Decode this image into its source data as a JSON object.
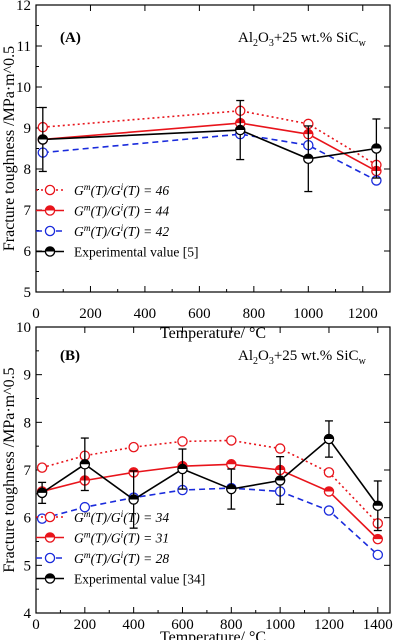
{
  "chart_data": [
    {
      "type": "line",
      "panel_label": "(A)",
      "annotation_main": "Al",
      "annotation_sub1": "2",
      "annotation_mid": "O",
      "annotation_sub2": "3",
      "annotation_rest": "+25 wt.% SiC",
      "annotation_sub3": "w",
      "xlabel": "Temperature/ °C",
      "ylabel": "Fracture toughness /MPa·m^0.5",
      "xlim": [
        0,
        1300
      ],
      "ylim": [
        5,
        12
      ],
      "xticks": [
        0,
        200,
        400,
        600,
        800,
        1000,
        1200
      ],
      "yticks": [
        5,
        6,
        7,
        8,
        9,
        10,
        11,
        12
      ],
      "series": [
        {
          "name_prefix": "G",
          "name_sup1": "m",
          "name_mid": "(T)/G",
          "name_sup2": "i",
          "name_suffix": "(T) = 46",
          "style": "dotted",
          "color": "#e8141b",
          "marker": "open-circle",
          "x": [
            25,
            750,
            1000,
            1250
          ],
          "y": [
            9.02,
            9.42,
            9.1,
            8.1
          ]
        },
        {
          "name_prefix": "G",
          "name_sup1": "m",
          "name_mid": "(T)/G",
          "name_sup2": "i",
          "name_suffix": "(T) = 44",
          "style": "solid",
          "color": "#e8141b",
          "marker": "half-filled-circle",
          "x": [
            25,
            750,
            1000,
            1250
          ],
          "y": [
            8.72,
            9.12,
            8.85,
            7.95
          ]
        },
        {
          "name_prefix": "G",
          "name_sup1": "m",
          "name_mid": "(T)/G",
          "name_sup2": "i",
          "name_suffix": "(T) = 42",
          "style": "dashed",
          "color": "#1a2bdc",
          "marker": "open-circle",
          "x": [
            25,
            750,
            1000,
            1250
          ],
          "y": [
            8.4,
            8.85,
            8.58,
            7.72
          ]
        },
        {
          "name_prefix": "Experimental value [5]",
          "style": "solid",
          "color": "#000000",
          "marker": "half-filled-circle",
          "x": [
            25,
            750,
            1000,
            1250
          ],
          "y": [
            8.72,
            8.95,
            8.25,
            8.5
          ],
          "err": [
            0.78,
            0.72,
            0.8,
            0.72
          ]
        }
      ]
    },
    {
      "type": "line",
      "panel_label": "(B)",
      "annotation_main": "Al",
      "annotation_sub1": "2",
      "annotation_mid": "O",
      "annotation_sub2": "3",
      "annotation_rest": "+25 wt.% SiC",
      "annotation_sub3": "w",
      "xlabel": "Temperature/ °C",
      "ylabel": "Fracture toughness /MPa·m^0.5",
      "xlim": [
        0,
        1450
      ],
      "ylim": [
        4,
        10
      ],
      "xticks": [
        0,
        200,
        400,
        600,
        800,
        1000,
        1200,
        1400
      ],
      "yticks": [
        4,
        5,
        6,
        7,
        8,
        9,
        10
      ],
      "series": [
        {
          "name_prefix": "G",
          "name_sup1": "m",
          "name_mid": "(T)/G",
          "name_sup2": "i",
          "name_suffix": "(T) = 34",
          "style": "dotted",
          "color": "#e8141b",
          "marker": "open-circle",
          "x": [
            25,
            200,
            400,
            600,
            800,
            1000,
            1200,
            1400
          ],
          "y": [
            7.05,
            7.3,
            7.48,
            7.6,
            7.62,
            7.45,
            6.95,
            5.88
          ]
        },
        {
          "name_prefix": "G",
          "name_sup1": "m",
          "name_mid": "(T)/G",
          "name_sup2": "i",
          "name_suffix": "(T) = 31",
          "style": "solid",
          "color": "#e8141b",
          "marker": "half-filled-circle",
          "x": [
            25,
            200,
            400,
            600,
            800,
            1000,
            1200,
            1400
          ],
          "y": [
            6.55,
            6.78,
            6.95,
            7.08,
            7.12,
            7.0,
            6.55,
            5.55
          ]
        },
        {
          "name_prefix": "G",
          "name_sup1": "m",
          "name_mid": "(T)/G",
          "name_sup2": "i",
          "name_suffix": "(T) = 28",
          "style": "dashed",
          "color": "#1a2bdc",
          "marker": "open-circle",
          "x": [
            25,
            200,
            400,
            600,
            800,
            1000,
            1200,
            1400
          ],
          "y": [
            5.98,
            6.22,
            6.42,
            6.58,
            6.62,
            6.55,
            6.15,
            5.22
          ]
        },
        {
          "name_prefix": "Experimental value [34]",
          "style": "solid",
          "color": "#000000",
          "marker": "half-filled-circle",
          "x": [
            25,
            200,
            400,
            600,
            800,
            1000,
            1200,
            1400
          ],
          "y": [
            6.52,
            7.12,
            6.38,
            7.02,
            6.6,
            6.78,
            7.65,
            6.25
          ],
          "err": [
            0.22,
            0.55,
            0.6,
            0.42,
            0.42,
            0.5,
            0.38,
            0.52
          ]
        }
      ]
    }
  ]
}
